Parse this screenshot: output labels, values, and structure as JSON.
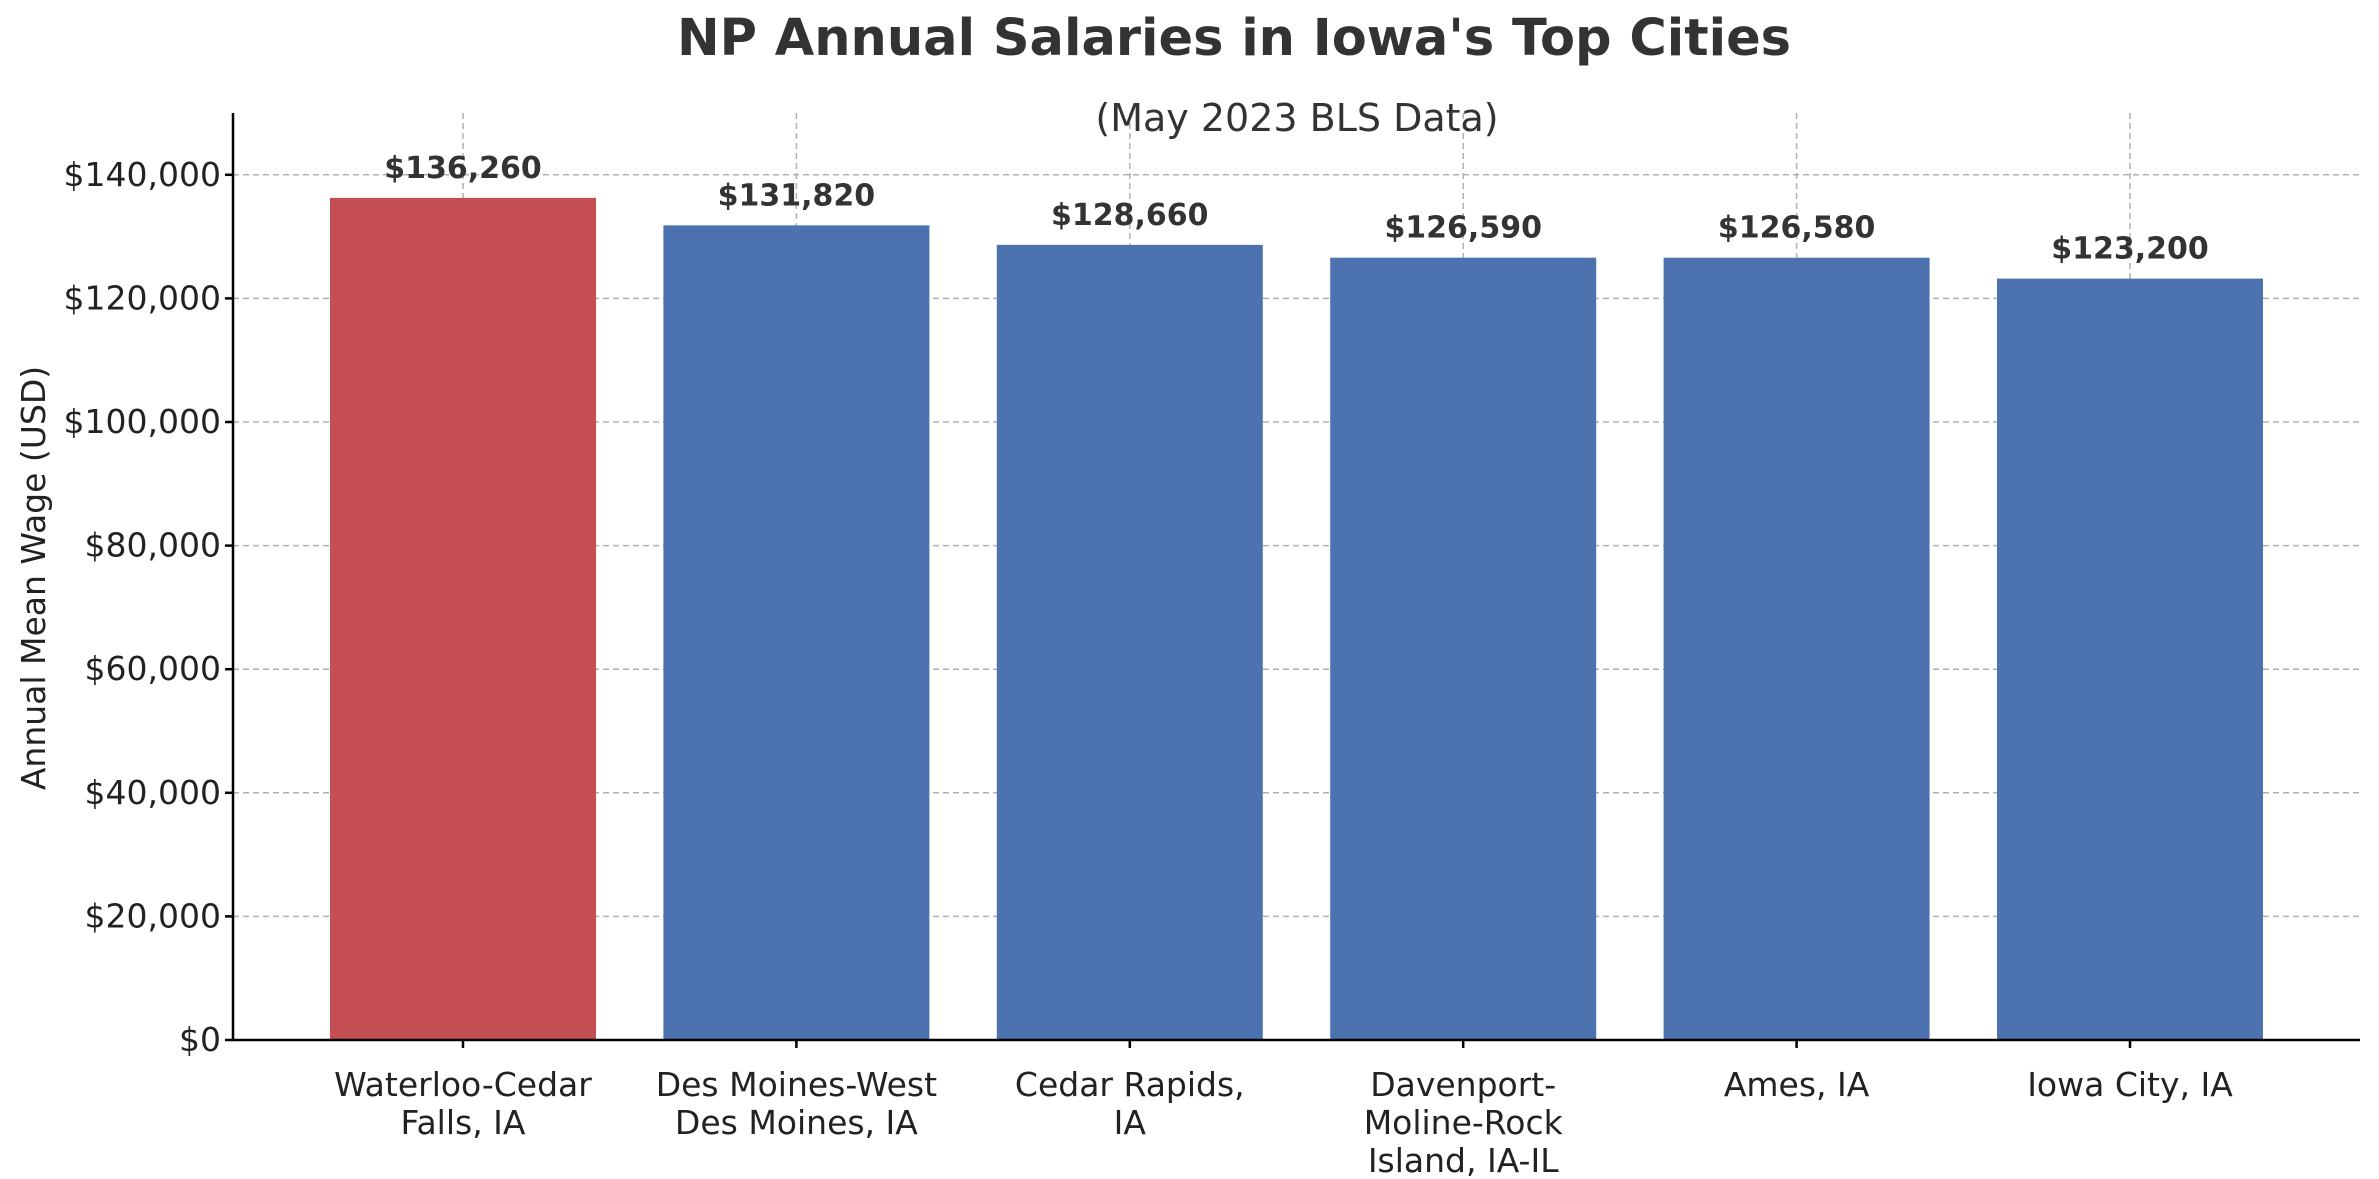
{
  "chart_data": {
    "type": "bar",
    "title": "NP Annual Salaries in Iowa's Top Cities",
    "subtitle": "(May 2023 BLS Data)",
    "xlabel": "",
    "ylabel": "Annual Mean Wage (USD)",
    "ylim": [
      0,
      150000
    ],
    "yticks": [
      0,
      20000,
      40000,
      60000,
      80000,
      100000,
      120000,
      140000
    ],
    "ytick_labels": [
      "$0",
      "$20,000",
      "$40,000",
      "$60,000",
      "$80,000",
      "$100,000",
      "$120,000",
      "$140,000"
    ],
    "categories": [
      "Waterloo-Cedar\nFalls, IA",
      "Des Moines-West\nDes Moines, IA",
      "Cedar Rapids,\nIA",
      "Davenport-\nMoline-Rock\nIsland, IA-IL",
      "Ames, IA",
      "Iowa City, IA"
    ],
    "values": [
      136260,
      131820,
      128660,
      126590,
      126580,
      123200
    ],
    "value_labels": [
      "$136,260",
      "$131,820",
      "$128,660",
      "$126,590",
      "$126,580",
      "$123,200"
    ],
    "bar_colors": [
      "#c44e52",
      "#4c72b0",
      "#4c72b0",
      "#4c72b0",
      "#4c72b0",
      "#4c72b0"
    ],
    "grid": true,
    "grid_color": "#b0b0b0",
    "text_color": "#333333"
  }
}
